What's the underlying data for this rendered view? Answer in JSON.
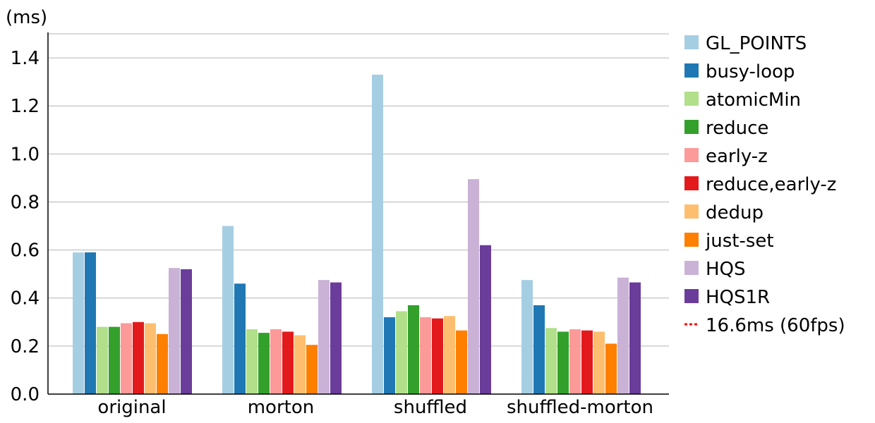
{
  "chart_data": {
    "type": "bar",
    "title": "",
    "xlabel": "",
    "ylabel": "(ms)",
    "ylim": [
      0,
      1.5
    ],
    "yticks": [
      "0.0",
      "0.2",
      "0.4",
      "0.6",
      "0.8",
      "1.0",
      "1.2",
      "1.4"
    ],
    "grid": true,
    "legend_position": "right",
    "categories": [
      "original",
      "morton",
      "shuffled",
      "shuffled-morton"
    ],
    "series": [
      {
        "name": "GL_POINTS",
        "color": "#a6cee3",
        "values": [
          0.59,
          0.7,
          1.33,
          0.475
        ]
      },
      {
        "name": "busy-loop",
        "color": "#1f78b4",
        "values": [
          0.59,
          0.46,
          0.32,
          0.37
        ]
      },
      {
        "name": "atomicMin",
        "color": "#b2df8a",
        "values": [
          0.28,
          0.27,
          0.345,
          0.275
        ]
      },
      {
        "name": "reduce",
        "color": "#33a02c",
        "values": [
          0.28,
          0.255,
          0.37,
          0.26
        ]
      },
      {
        "name": "early-z",
        "color": "#fb9a99",
        "values": [
          0.295,
          0.27,
          0.32,
          0.27
        ]
      },
      {
        "name": "reduce,early-z",
        "color": "#e31a1c",
        "values": [
          0.3,
          0.26,
          0.315,
          0.265
        ]
      },
      {
        "name": "dedup",
        "color": "#fdbf6f",
        "values": [
          0.295,
          0.245,
          0.325,
          0.26
        ]
      },
      {
        "name": "just-set",
        "color": "#ff7f00",
        "values": [
          0.25,
          0.205,
          0.265,
          0.21
        ]
      },
      {
        "name": "HQS",
        "color": "#cab2d6",
        "values": [
          0.525,
          0.475,
          0.895,
          0.485
        ]
      },
      {
        "name": "HQS1R",
        "color": "#6a3d9a",
        "values": [
          0.52,
          0.465,
          0.62,
          0.465
        ]
      }
    ],
    "reference_line": {
      "name": "16.6ms (60fps)",
      "color": "#ff0000",
      "style": "dotted"
    }
  }
}
